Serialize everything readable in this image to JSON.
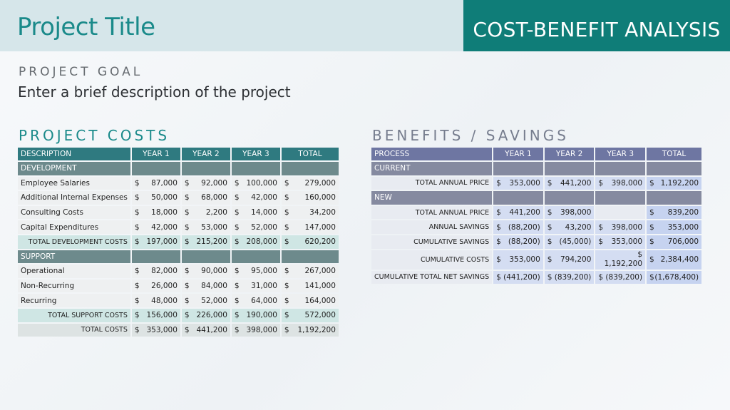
{
  "header": {
    "project_title": "Project Title",
    "banner": "COST-BENEFIT ANALYSIS"
  },
  "goal": {
    "label": "PROJECT GOAL",
    "text": "Enter a brief description of the project"
  },
  "costs": {
    "label": "PROJECT COSTS",
    "columns": [
      "DESCRIPTION",
      "YEAR 1",
      "YEAR 2",
      "YEAR 3",
      "TOTAL"
    ],
    "development_label": "DEVELOPMENT",
    "development_rows": [
      {
        "label": "Employee Salaries",
        "y1": "87,000",
        "y2": "92,000",
        "y3": "100,000",
        "total": "279,000"
      },
      {
        "label": "Additional Internal Expenses",
        "y1": "50,000",
        "y2": "68,000",
        "y3": "42,000",
        "total": "160,000"
      },
      {
        "label": "Consulting Costs",
        "y1": "18,000",
        "y2": "2,200",
        "y3": "14,000",
        "total": "34,200"
      },
      {
        "label": "Capital Expenditures",
        "y1": "42,000",
        "y2": "53,000",
        "y3": "52,000",
        "total": "147,000"
      }
    ],
    "total_development": {
      "label": "TOTAL DEVELOPMENT COSTS",
      "y1": "197,000",
      "y2": "215,200",
      "y3": "208,000",
      "total": "620,200"
    },
    "support_label": "SUPPORT",
    "support_rows": [
      {
        "label": "Operational",
        "y1": "82,000",
        "y2": "90,000",
        "y3": "95,000",
        "total": "267,000"
      },
      {
        "label": "Non-Recurring",
        "y1": "26,000",
        "y2": "84,000",
        "y3": "31,000",
        "total": "141,000"
      },
      {
        "label": "Recurring",
        "y1": "48,000",
        "y2": "52,000",
        "y3": "64,000",
        "total": "164,000"
      }
    ],
    "total_support": {
      "label": "TOTAL SUPPORT COSTS",
      "y1": "156,000",
      "y2": "226,000",
      "y3": "190,000",
      "total": "572,000"
    },
    "total_costs": {
      "label": "TOTAL COSTS",
      "y1": "353,000",
      "y2": "441,200",
      "y3": "398,000",
      "total": "1,192,200"
    }
  },
  "benefits": {
    "label": "BENEFITS / SAVINGS",
    "columns": [
      "PROCESS",
      "YEAR 1",
      "YEAR 2",
      "YEAR 3",
      "TOTAL"
    ],
    "current_label": "CURRENT",
    "current_row": {
      "label": "TOTAL ANNUAL PRICE",
      "y1": "353,000",
      "y2": "441,200",
      "y3": "398,000",
      "total": "1,192,200"
    },
    "new_label": "NEW",
    "new_rows": [
      {
        "label": "TOTAL ANNUAL PRICE",
        "y1": "441,200",
        "y2": "398,000",
        "y3": "",
        "total": "839,200"
      },
      {
        "label": "ANNUAL SAVINGS",
        "y1": "(88,200)",
        "y2": "43,200",
        "y3": "398,000",
        "total": "353,000"
      },
      {
        "label": "CUMULATIVE SAVINGS",
        "y1": "(88,200)",
        "y2": "(45,000)",
        "y3": "353,000",
        "total": "706,000"
      }
    ],
    "cumulative_costs": {
      "label": "CUMULATIVE COSTS",
      "y1": "353,000",
      "y2": "794,200",
      "y3": "1,192,200",
      "total": "2,384,400"
    },
    "net_savings": {
      "label": "CUMULATIVE TOTAL NET SAVINGS",
      "y1": "$ (441,200)",
      "y2": "$ (839,200)",
      "y3": "$ (839,200)",
      "total": "(1,678,400)"
    },
    "currency": "$"
  }
}
